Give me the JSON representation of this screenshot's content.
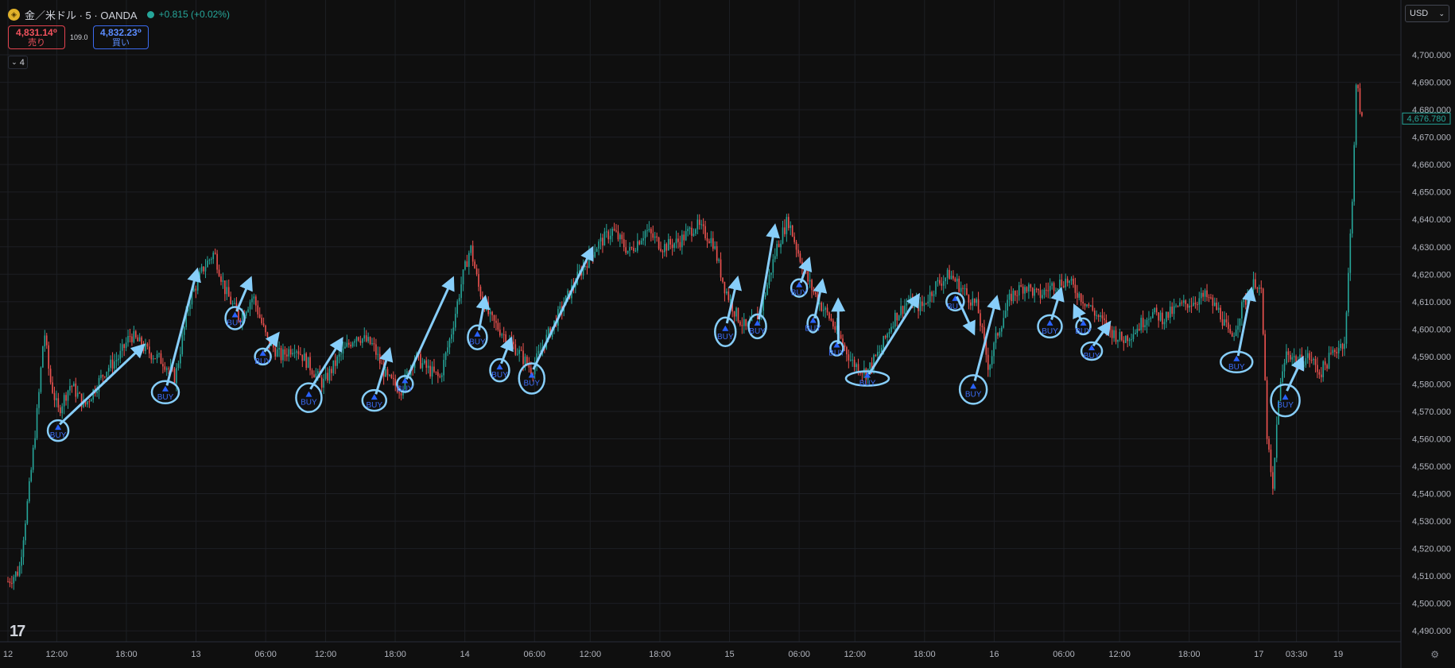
{
  "header": {
    "symbol": "金／米ドル · 5 · OANDA",
    "change": "+0.815 (+0.02%)",
    "sell_price": "4,831.14⁰",
    "sell_label": "売り",
    "spread": "109.0",
    "buy_price": "4,832.23⁰",
    "buy_label": "買い",
    "layers_count": "4",
    "currency": "USD"
  },
  "icons": {
    "logo": "tradingview-logo",
    "settings": "gear-icon",
    "coin": "gold-coin-icon",
    "chevron": "chevron-down-icon"
  },
  "colors": {
    "up": "#26a69a",
    "down": "#ef5350",
    "annotation": "#87cefa",
    "marker": "#2962ff",
    "background": "#0f0f0f"
  },
  "chart_data": {
    "type": "candlestick",
    "title": "",
    "ylabel": "",
    "xlabel": "",
    "ylim": [
      4486,
      4720
    ],
    "current_price": "4,676.780",
    "y_ticks": [
      4490,
      4500,
      4510,
      4520,
      4530,
      4540,
      4550,
      4560,
      4570,
      4580,
      4590,
      4600,
      4610,
      4620,
      4630,
      4640,
      4650,
      4660,
      4670,
      4680,
      4690,
      4700
    ],
    "x_ticks": [
      {
        "label": "12",
        "t": 0.0
      },
      {
        "label": "12:00",
        "t": 0.035
      },
      {
        "label": "18:00",
        "t": 0.085
      },
      {
        "label": "13",
        "t": 0.135
      },
      {
        "label": "06:00",
        "t": 0.185
      },
      {
        "label": "12:00",
        "t": 0.228
      },
      {
        "label": "18:00",
        "t": 0.278
      },
      {
        "label": "14",
        "t": 0.328
      },
      {
        "label": "06:00",
        "t": 0.378
      },
      {
        "label": "12:00",
        "t": 0.418
      },
      {
        "label": "18:00",
        "t": 0.468
      },
      {
        "label": "15",
        "t": 0.518
      },
      {
        "label": "06:00",
        "t": 0.568
      },
      {
        "label": "12:00",
        "t": 0.608
      },
      {
        "label": "18:00",
        "t": 0.658
      },
      {
        "label": "16",
        "t": 0.708
      },
      {
        "label": "06:00",
        "t": 0.758
      },
      {
        "label": "12:00",
        "t": 0.798
      },
      {
        "label": "18:00",
        "t": 0.848
      },
      {
        "label": "17",
        "t": 0.898
      },
      {
        "label": "03:30",
        "t": 0.925
      },
      {
        "label": "19",
        "t": 0.955
      }
    ],
    "price_path": [
      [
        0.0,
        4508
      ],
      [
        0.008,
        4512
      ],
      [
        0.016,
        4545
      ],
      [
        0.022,
        4575
      ],
      [
        0.026,
        4600
      ],
      [
        0.03,
        4582
      ],
      [
        0.036,
        4570
      ],
      [
        0.045,
        4580
      ],
      [
        0.055,
        4572
      ],
      [
        0.07,
        4585
      ],
      [
        0.08,
        4590
      ],
      [
        0.088,
        4598
      ],
      [
        0.1,
        4592
      ],
      [
        0.112,
        4588
      ],
      [
        0.12,
        4582
      ],
      [
        0.13,
        4610
      ],
      [
        0.14,
        4622
      ],
      [
        0.148,
        4628
      ],
      [
        0.156,
        4614
      ],
      [
        0.166,
        4604
      ],
      [
        0.176,
        4612
      ],
      [
        0.186,
        4596
      ],
      [
        0.196,
        4590
      ],
      [
        0.206,
        4594
      ],
      [
        0.216,
        4587
      ],
      [
        0.226,
        4580
      ],
      [
        0.238,
        4590
      ],
      [
        0.25,
        4598
      ],
      [
        0.262,
        4594
      ],
      [
        0.272,
        4582
      ],
      [
        0.282,
        4578
      ],
      [
        0.292,
        4590
      ],
      [
        0.3,
        4586
      ],
      [
        0.31,
        4582
      ],
      [
        0.318,
        4598
      ],
      [
        0.326,
        4618
      ],
      [
        0.332,
        4630
      ],
      [
        0.338,
        4615
      ],
      [
        0.346,
        4604
      ],
      [
        0.356,
        4598
      ],
      [
        0.366,
        4592
      ],
      [
        0.376,
        4585
      ],
      [
        0.386,
        4596
      ],
      [
        0.398,
        4608
      ],
      [
        0.41,
        4620
      ],
      [
        0.422,
        4630
      ],
      [
        0.434,
        4636
      ],
      [
        0.446,
        4628
      ],
      [
        0.458,
        4636
      ],
      [
        0.47,
        4630
      ],
      [
        0.482,
        4632
      ],
      [
        0.494,
        4638
      ],
      [
        0.506,
        4632
      ],
      [
        0.514,
        4616
      ],
      [
        0.522,
        4606
      ],
      [
        0.53,
        4600
      ],
      [
        0.54,
        4606
      ],
      [
        0.552,
        4630
      ],
      [
        0.56,
        4640
      ],
      [
        0.566,
        4630
      ],
      [
        0.574,
        4618
      ],
      [
        0.582,
        4610
      ],
      [
        0.59,
        4604
      ],
      [
        0.598,
        4596
      ],
      [
        0.606,
        4588
      ],
      [
        0.616,
        4584
      ],
      [
        0.626,
        4592
      ],
      [
        0.636,
        4604
      ],
      [
        0.646,
        4610
      ],
      [
        0.656,
        4608
      ],
      [
        0.666,
        4616
      ],
      [
        0.676,
        4620
      ],
      [
        0.686,
        4614
      ],
      [
        0.696,
        4608
      ],
      [
        0.704,
        4586
      ],
      [
        0.71,
        4598
      ],
      [
        0.72,
        4612
      ],
      [
        0.73,
        4616
      ],
      [
        0.74,
        4612
      ],
      [
        0.75,
        4616
      ],
      [
        0.76,
        4618
      ],
      [
        0.77,
        4612
      ],
      [
        0.78,
        4606
      ],
      [
        0.79,
        4600
      ],
      [
        0.8,
        4596
      ],
      [
        0.81,
        4600
      ],
      [
        0.82,
        4606
      ],
      [
        0.83,
        4604
      ],
      [
        0.84,
        4608
      ],
      [
        0.85,
        4610
      ],
      [
        0.86,
        4612
      ],
      [
        0.87,
        4606
      ],
      [
        0.878,
        4596
      ],
      [
        0.886,
        4608
      ],
      [
        0.896,
        4618
      ],
      [
        0.9,
        4612
      ],
      [
        0.904,
        4560
      ],
      [
        0.908,
        4540
      ],
      [
        0.912,
        4575
      ],
      [
        0.918,
        4592
      ],
      [
        0.926,
        4588
      ],
      [
        0.934,
        4590
      ],
      [
        0.942,
        4584
      ],
      [
        0.952,
        4592
      ],
      [
        0.96,
        4596
      ],
      [
        0.965,
        4648
      ],
      [
        0.968,
        4690
      ],
      [
        0.972,
        4676
      ]
    ],
    "annotations": {
      "label": "BUY",
      "markers": [
        {
          "t": 0.036,
          "p": 4563,
          "rx": 13,
          "ry": 13,
          "arrow_to": [
            0.095,
            4593
          ]
        },
        {
          "t": 0.113,
          "p": 4577,
          "rx": 17,
          "ry": 14,
          "arrow_to": [
            0.135,
            4620
          ]
        },
        {
          "t": 0.163,
          "p": 4604,
          "rx": 12,
          "ry": 14,
          "arrow_to": [
            0.173,
            4617
          ]
        },
        {
          "t": 0.183,
          "p": 4590,
          "rx": 10,
          "ry": 10,
          "arrow_to": [
            0.192,
            4597
          ]
        },
        {
          "t": 0.216,
          "p": 4575,
          "rx": 16,
          "ry": 18,
          "arrow_to": [
            0.238,
            4595
          ]
        },
        {
          "t": 0.263,
          "p": 4574,
          "rx": 15,
          "ry": 13,
          "arrow_to": [
            0.273,
            4591
          ]
        },
        {
          "t": 0.285,
          "p": 4580,
          "rx": 10,
          "ry": 10,
          "arrow_to": [
            0.318,
            4617
          ]
        },
        {
          "t": 0.337,
          "p": 4597,
          "rx": 12,
          "ry": 15,
          "arrow_to": [
            0.342,
            4610
          ]
        },
        {
          "t": 0.353,
          "p": 4585,
          "rx": 12,
          "ry": 14,
          "arrow_to": [
            0.36,
            4595
          ]
        },
        {
          "t": 0.376,
          "p": 4582,
          "rx": 16,
          "ry": 19,
          "arrow_to": [
            0.418,
            4628
          ]
        },
        {
          "t": 0.515,
          "p": 4599,
          "rx": 13,
          "ry": 18,
          "arrow_to": [
            0.523,
            4617
          ]
        },
        {
          "t": 0.538,
          "p": 4601,
          "rx": 11,
          "ry": 15,
          "arrow_to": [
            0.55,
            4636
          ]
        },
        {
          "t": 0.568,
          "p": 4615,
          "rx": 10,
          "ry": 11,
          "arrow_to": [
            0.574,
            4624
          ]
        },
        {
          "t": 0.578,
          "p": 4602,
          "rx": 7,
          "ry": 11,
          "arrow_to": [
            0.584,
            4616
          ]
        },
        {
          "t": 0.595,
          "p": 4593,
          "rx": 8,
          "ry": 9,
          "arrow_to": [
            0.596,
            4609
          ]
        },
        {
          "t": 0.617,
          "p": 4582,
          "rx": 27,
          "ry": 9,
          "arrow_to": [
            0.652,
            4611
          ]
        },
        {
          "t": 0.68,
          "p": 4610,
          "rx": 11,
          "ry": 11,
          "arrow_to": [
            0.692,
            4600
          ]
        },
        {
          "t": 0.693,
          "p": 4578,
          "rx": 17,
          "ry": 18,
          "arrow_to": [
            0.709,
            4610
          ]
        },
        {
          "t": 0.748,
          "p": 4601,
          "rx": 15,
          "ry": 14,
          "arrow_to": [
            0.755,
            4613
          ]
        },
        {
          "t": 0.772,
          "p": 4601,
          "rx": 9,
          "ry": 10,
          "arrow_to": [
            0.767,
            4607
          ]
        },
        {
          "t": 0.778,
          "p": 4592,
          "rx": 13,
          "ry": 11,
          "arrow_to": [
            0.789,
            4601
          ]
        },
        {
          "t": 0.882,
          "p": 4588,
          "rx": 20,
          "ry": 13,
          "arrow_to": [
            0.892,
            4613
          ]
        },
        {
          "t": 0.917,
          "p": 4574,
          "rx": 18,
          "ry": 20,
          "arrow_to": [
            0.928,
            4588
          ]
        }
      ]
    }
  }
}
